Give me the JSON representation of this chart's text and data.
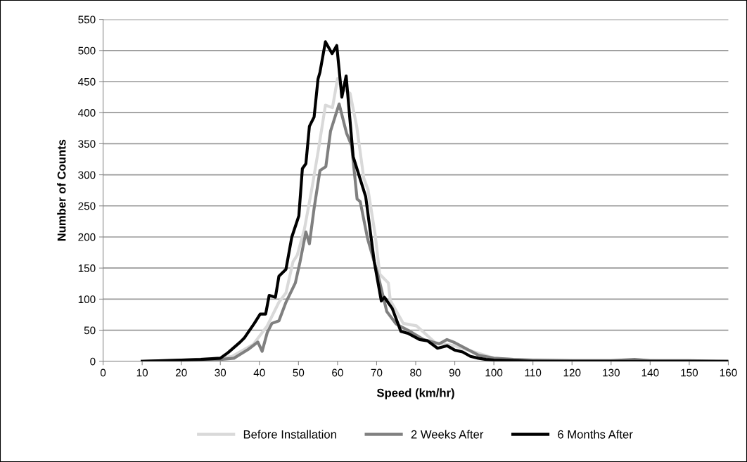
{
  "chart_data": {
    "type": "line",
    "xlabel": "Speed (km/hr)",
    "ylabel": "Number of Counts",
    "xlim": [
      0,
      160
    ],
    "xticks": [
      0,
      10,
      20,
      30,
      40,
      50,
      60,
      70,
      80,
      90,
      100,
      110,
      120,
      130,
      140,
      150,
      160
    ],
    "ylim": [
      0,
      550
    ],
    "yticks": [
      0,
      50,
      100,
      150,
      200,
      250,
      300,
      350,
      400,
      450,
      500,
      550
    ],
    "grid": "y",
    "legend": "bottom",
    "marker": "none",
    "line_style": "solid",
    "series": [
      {
        "name": "Before Installation",
        "color": "#d9d9d9",
        "x": [
          10,
          20,
          30,
          33,
          35.3,
          38.4,
          42,
          45,
          46.8,
          48.6,
          49.7,
          51.5,
          53.3,
          55.1,
          56.9,
          58.7,
          60,
          61,
          63.2,
          64.9,
          66.7,
          67.8,
          69.6,
          70.8,
          73,
          73.5,
          76.8,
          80.2,
          85,
          90,
          95,
          100,
          105,
          110,
          120,
          130,
          140,
          150,
          160
        ],
        "values": [
          0,
          2,
          5,
          8,
          16,
          27,
          57,
          95,
          110,
          160,
          171,
          212,
          273,
          340,
          412,
          408,
          455,
          440,
          431,
          378,
          295,
          276,
          205,
          140,
          126,
          98,
          61,
          57,
          30,
          25,
          15,
          5,
          3,
          1,
          1,
          1,
          1,
          0,
          0
        ]
      },
      {
        "name": "2 Weeks After",
        "color": "#808080",
        "x": [
          10,
          20,
          30,
          33.5,
          37.1,
          39.6,
          40.7,
          42,
          43.2,
          45,
          46.8,
          49.2,
          50.4,
          51.9,
          52.8,
          54,
          55.5,
          57,
          58.2,
          60.4,
          62.3,
          63.6,
          65,
          65.8,
          67.7,
          70.3,
          72.6,
          75,
          78,
          82,
          86,
          88,
          90,
          93,
          96,
          100,
          105,
          110,
          120,
          130,
          136,
          140,
          150,
          160
        ],
        "values": [
          0,
          1,
          3,
          5,
          19,
          31,
          16,
          46,
          61,
          65,
          95,
          126,
          160,
          208,
          189,
          246,
          307,
          313,
          370,
          414,
          367,
          347,
          261,
          257,
          197,
          140,
          80,
          60,
          50,
          35,
          28,
          35,
          30,
          20,
          10,
          5,
          3,
          2,
          1,
          1,
          3,
          1,
          1,
          0
        ]
      },
      {
        "name": "6 Months After",
        "color": "#000000",
        "x": [
          10,
          20,
          25,
          30,
          32,
          35.1,
          36.2,
          38.7,
          40.2,
          41.6,
          42.5,
          44.1,
          45,
          46.8,
          48.3,
          50.1,
          51,
          51.9,
          52.8,
          54,
          55,
          55.5,
          56.9,
          58.6,
          59.8,
          61.1,
          62.2,
          64,
          67.2,
          69.4,
          71.2,
          72,
          74,
          76.2,
          78,
          81,
          83,
          85.6,
          88,
          90,
          92,
          94,
          96,
          98,
          100,
          105,
          110,
          120,
          130,
          140,
          150,
          160
        ],
        "values": [
          0,
          2,
          3,
          5,
          14,
          31,
          38,
          61,
          76,
          76,
          106,
          103,
          137,
          148,
          200,
          234,
          310,
          318,
          378,
          393,
          454,
          465,
          514,
          495,
          508,
          425,
          459,
          329,
          265,
          160,
          97,
          103,
          85,
          48,
          45,
          35,
          33,
          21,
          25,
          18,
          15,
          8,
          5,
          3,
          2,
          1,
          0,
          0,
          0,
          0,
          0,
          0
        ]
      }
    ]
  }
}
